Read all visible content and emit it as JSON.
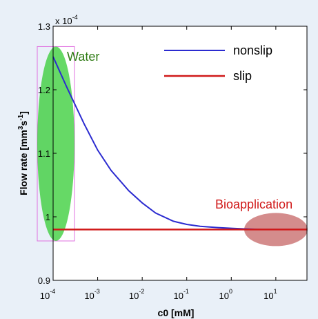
{
  "chart_data": {
    "type": "line",
    "xscale": "log",
    "xlim": [
      0.0001,
      50
    ],
    "ylim": [
      0.9,
      1.3
    ],
    "y_multiplier_label": "x 10",
    "y_multiplier_exponent": "-4",
    "xlabel": "c0 [mM]",
    "ylabel_parts": [
      "Flow rate [mm",
      "3",
      "s",
      "-1",
      "]"
    ],
    "x_ticks": [
      {
        "value": 0.0001,
        "base": "10",
        "exp": "-4"
      },
      {
        "value": 0.001,
        "base": "10",
        "exp": "-3"
      },
      {
        "value": 0.01,
        "base": "10",
        "exp": "-2"
      },
      {
        "value": 0.1,
        "base": "10",
        "exp": "-1"
      },
      {
        "value": 1,
        "base": "10",
        "exp": "0"
      },
      {
        "value": 10,
        "base": "10",
        "exp": "1"
      }
    ],
    "y_ticks": [
      {
        "value": 0.9,
        "label": "0.9"
      },
      {
        "value": 1.0,
        "label": "1"
      },
      {
        "value": 1.1,
        "label": "1.1"
      },
      {
        "value": 1.2,
        "label": "1.2"
      },
      {
        "value": 1.3,
        "label": "1.3"
      }
    ],
    "grid": false,
    "legend_position": "top-right",
    "series": [
      {
        "name": "nonslip",
        "color": "#2b2bd0",
        "x": [
          0.0001,
          0.0002,
          0.0005,
          0.001,
          0.002,
          0.005,
          0.01,
          0.02,
          0.05,
          0.1,
          0.2,
          0.5,
          1,
          2,
          5,
          10,
          50
        ],
        "y": [
          1.252,
          1.205,
          1.146,
          1.105,
          1.073,
          1.041,
          1.022,
          1.006,
          0.993,
          0.988,
          0.985,
          0.983,
          0.982,
          0.981,
          0.98,
          0.98,
          0.98
        ]
      },
      {
        "name": "slip",
        "color": "#d01818",
        "x": [
          0.0001,
          50
        ],
        "y": [
          0.98,
          0.98
        ]
      }
    ],
    "annotations": [
      {
        "text": "Water",
        "color": "#2d7a12"
      },
      {
        "text": "Bioapplication",
        "color": "#d01818"
      }
    ],
    "regions": [
      {
        "name": "water",
        "color": "#33cc33"
      },
      {
        "name": "bioapplication",
        "color": "#b84040"
      }
    ]
  }
}
